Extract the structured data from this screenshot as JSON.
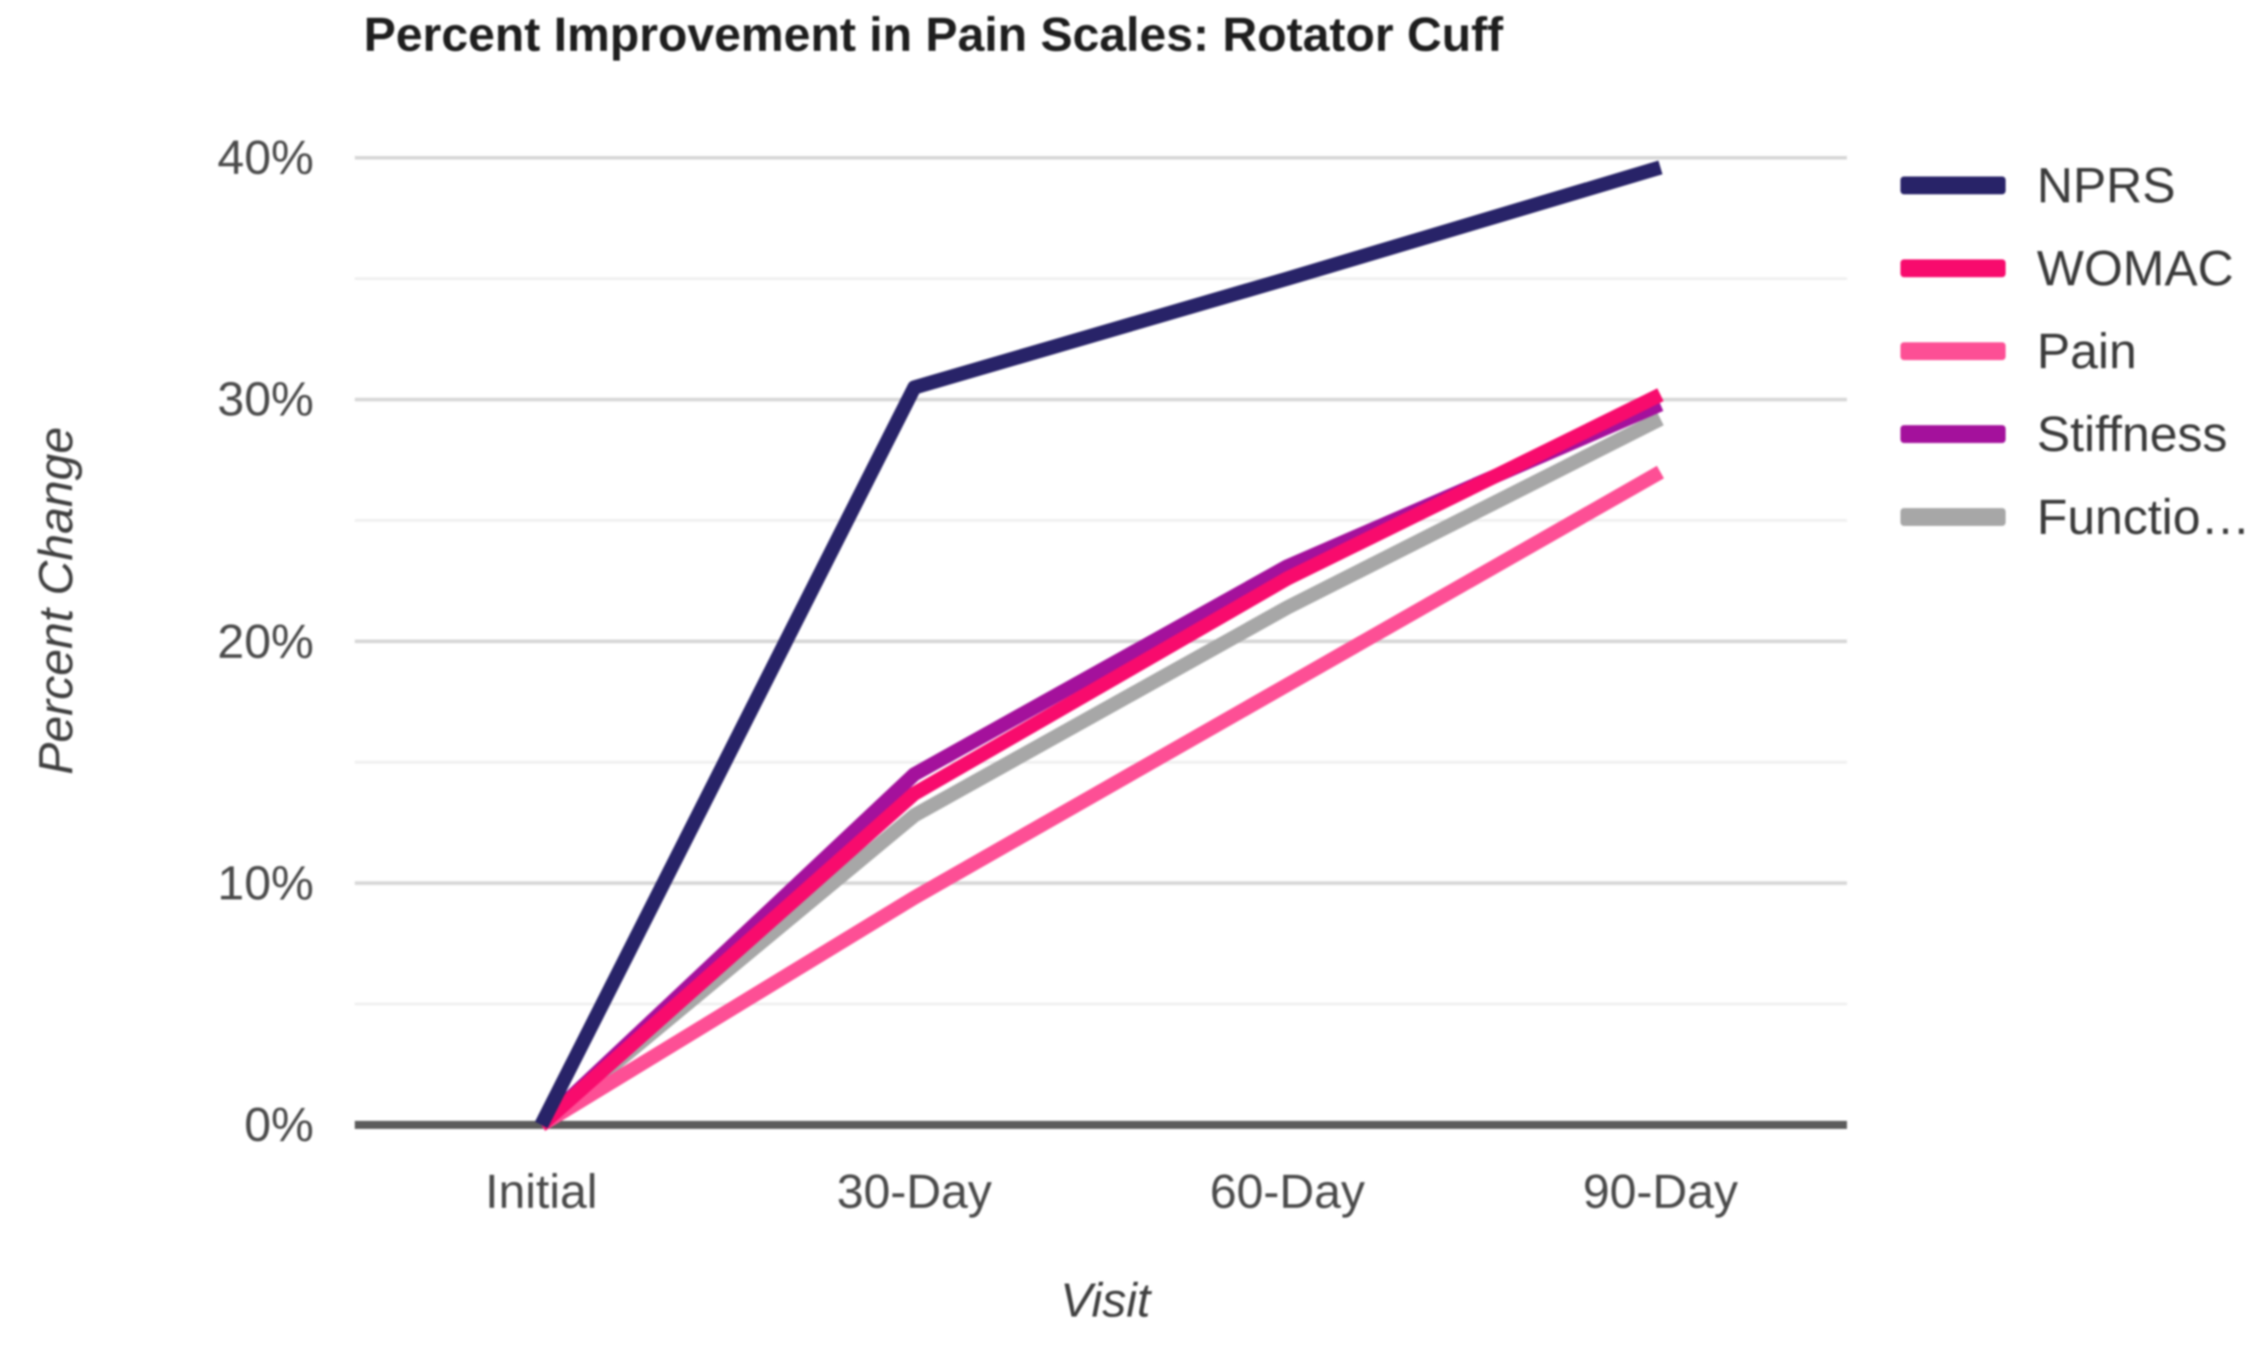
{
  "title": "Percent Improvement in Pain Scales: Rotator Cuff",
  "chart_data": {
    "type": "line",
    "title": "Percent Improvement in Pain Scales: Rotator Cuff",
    "xlabel": "Visit",
    "ylabel": "Percent Change",
    "categories": [
      "Initial",
      "30-Day",
      "60-Day",
      "90-Day"
    ],
    "series": [
      {
        "name": "NPRS",
        "legend_label": "NPRS",
        "color": "#282368",
        "values": [
          0,
          30.5,
          35.0,
          39.6
        ]
      },
      {
        "name": "WOMAC",
        "legend_label": "WOMAC",
        "color": "#F80B6D",
        "values": [
          0,
          13.7,
          22.6,
          30.2
        ]
      },
      {
        "name": "Pain",
        "legend_label": "Pain",
        "color": "#FD4F95",
        "values": [
          0,
          9.4,
          18.2,
          27.0
        ]
      },
      {
        "name": "Stiffness",
        "legend_label": "Stiffness",
        "color": "#A4119C",
        "values": [
          0,
          14.5,
          23.1,
          29.8
        ]
      },
      {
        "name": "Function",
        "legend_label": "Functio…",
        "color": "#A7A7A7",
        "values": [
          0,
          12.8,
          21.4,
          29.2
        ]
      }
    ],
    "y_ticks": [
      {
        "label": "0%",
        "value": 0
      },
      {
        "label": "10%",
        "value": 10
      },
      {
        "label": "20%",
        "value": 20
      },
      {
        "label": "30%",
        "value": 30
      },
      {
        "label": "40%",
        "value": 40
      }
    ],
    "ylim": [
      0,
      40
    ],
    "y_major_step": 10,
    "y_minor_step": 5,
    "grid": true,
    "legend_position": "right",
    "colors": {
      "background": "#FFFFFF",
      "gridline_major": "#D7D7D7",
      "gridline_minor": "#EFEFEF",
      "axis_line": "#5C5C5C",
      "tick_text": "#4A4A4A",
      "title_text": "#1E1E1E",
      "legend_text": "#3A3A3A"
    }
  }
}
